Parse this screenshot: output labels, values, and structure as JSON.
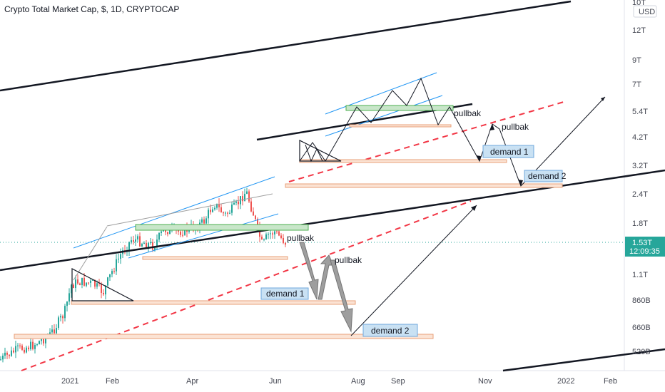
{
  "chart_data": {
    "type": "candlestick",
    "title": "Crypto Total Market Cap, $, 1D, CRYPTOCAP",
    "currency_label": "USD",
    "y_scale": "log",
    "y_ticks": [
      "10T",
      "12T",
      "9T",
      "7T",
      "5.4T",
      "4.2T",
      "3.2T",
      "2.4T",
      "1.8T",
      "1.1T",
      "860B",
      "660B",
      "520B"
    ],
    "x_ticks": [
      "2021",
      "Feb",
      "Apr",
      "Jun",
      "Aug",
      "Sep",
      "Nov",
      "2022",
      "Feb"
    ],
    "current_price": "1.53T",
    "countdown": "12:09:35",
    "colors": {
      "up": "#26a69a",
      "down": "#ef5350",
      "trendline": "#131722",
      "channel": "#2196f3",
      "dashed_trend": "#f23645",
      "demand_fill": "#fbe3d4",
      "demand_border": "#e8a07a",
      "label_fill": "#c9e1f3",
      "label_border": "#6fa8dc",
      "green_zone": "#c8e6c9",
      "price_tag": "#26a69a"
    },
    "annotations": {
      "pullback_1": "pullbak",
      "pullback_2": "pullbak",
      "pullback_3": "pullbak",
      "pullback_4": "pullbak",
      "demand_1_lower": "demand 1",
      "demand_2_lower": "demand 2",
      "demand_1_upper": "demand 1",
      "demand_2_upper": "demand 2"
    }
  }
}
